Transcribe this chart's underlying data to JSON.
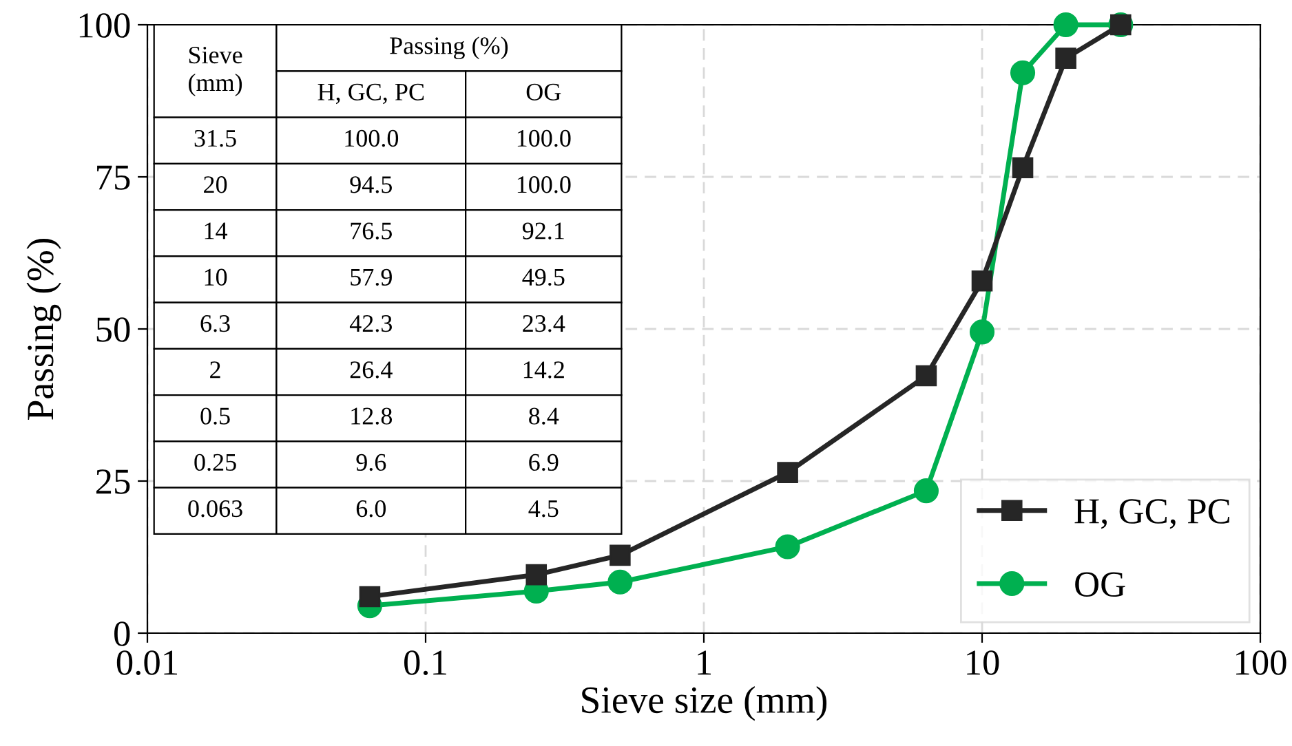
{
  "chart_data": {
    "type": "line",
    "xlabel": "Sieve size (mm)",
    "ylabel": "Passing (%)",
    "x": [
      0.063,
      0.25,
      0.5,
      2,
      6.3,
      10,
      14,
      20,
      31.5
    ],
    "series": [
      {
        "name": "H, GC, PC",
        "color": "#262626",
        "marker": "square",
        "values": [
          6.0,
          9.6,
          12.8,
          26.4,
          42.3,
          57.9,
          76.5,
          94.5,
          100.0
        ]
      },
      {
        "name": "OG",
        "color": "#00b050",
        "marker": "circle",
        "values": [
          4.5,
          6.9,
          8.4,
          14.2,
          23.4,
          49.5,
          92.1,
          100.0,
          100.0
        ]
      }
    ],
    "annotations": [
      "Sieve\n(mm)",
      "Passing (%)",
      "H, GC, PC",
      "OG",
      "31.5",
      "100.0",
      "100.0",
      "20",
      "94.5",
      "100.0",
      "14",
      "76.5",
      "92.1",
      "10",
      "57.9",
      "49.5",
      "6.3",
      "42.3",
      "23.4",
      "2",
      "26.4",
      "14.2",
      "0.5",
      "12.8",
      "8.4",
      "0.25",
      "9.6",
      "6.9",
      "0.063",
      "6.0",
      "4.5"
    ],
    "log": "x",
    "xlim": [
      0.01,
      100
    ],
    "xticks": [
      0.01,
      0.1,
      1,
      10,
      100
    ],
    "ylim": [
      0,
      100
    ],
    "yticks": [
      0,
      25,
      50,
      75,
      100
    ],
    "grid": true,
    "legend": "bottom right",
    "line_style": "solid"
  }
}
